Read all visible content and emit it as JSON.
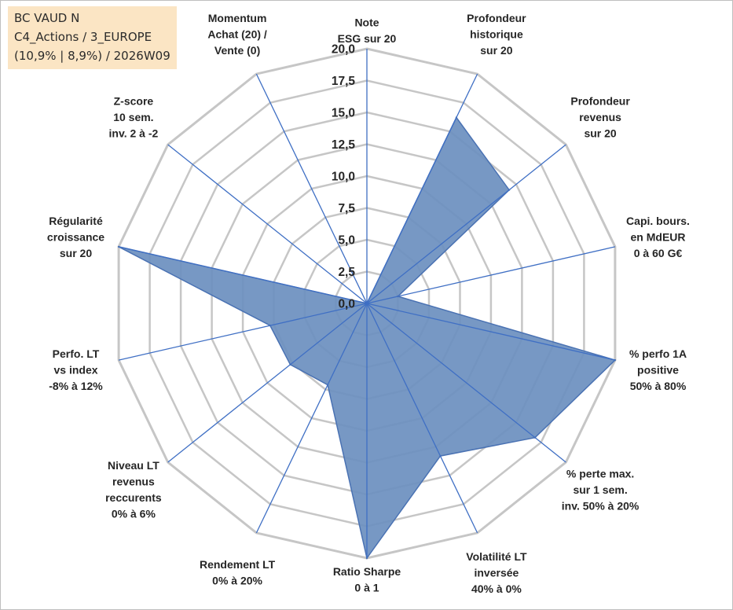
{
  "info_box": {
    "line1": "BC VAUD N",
    "line2": "C4_Actions / 3_EUROPE",
    "line3": "(10,9% | 8,9%) / 2026W09"
  },
  "colors": {
    "fill": "#6b8fbf",
    "outline": "#4a72b3",
    "spokes": "#3f6fc4",
    "rings": "#c6c6c6",
    "info_box_bg": "#fbe5c4"
  },
  "chart_data": {
    "type": "radar",
    "title": "",
    "ylim": [
      0,
      20
    ],
    "tick_values": [
      0,
      2.5,
      5,
      7.5,
      10,
      12.5,
      15,
      17.5,
      20
    ],
    "tick_labels": [
      "0,0",
      "2,5",
      "5,0",
      "7,5",
      "10,0",
      "12,5",
      "15,0",
      "17,5",
      "20,0"
    ],
    "grid": true,
    "categories": [
      [
        "Note",
        "ESG sur 20"
      ],
      [
        "Profondeur",
        "historique",
        "sur 20"
      ],
      [
        "Profondeur",
        "revenus",
        "sur 20"
      ],
      [
        "Capi. bours.",
        "en MdEUR",
        "0 à 60 G€"
      ],
      [
        "% perfo 1A",
        "positive",
        "50% à 80%"
      ],
      [
        "% perte max.",
        "sur 1 sem.",
        "inv. 50% à 20%"
      ],
      [
        "Volatilité LT",
        "inversée",
        "40% à 0%"
      ],
      [
        "Ratio Sharpe",
        "0 à 1"
      ],
      [
        "Rendement LT",
        "0% à 20%"
      ],
      [
        "Niveau LT",
        "revenus",
        "reccurents",
        "0% à 6%"
      ],
      [
        "Perfo. LT",
        "vs index",
        "-8% à 12%"
      ],
      [
        "Régularité",
        "croissance",
        "sur 20"
      ],
      [
        "Z-score",
        "10 sem.",
        "inv. 2 à -2"
      ],
      [
        "Momentum",
        "Achat (20) /",
        "Vente (0)"
      ]
    ],
    "series": [
      {
        "values": [
          0,
          16.2,
          14.3,
          2.5,
          20,
          16.9,
          13.3,
          20,
          7.1,
          7.7,
          7.8,
          20,
          0,
          0
        ]
      }
    ]
  }
}
